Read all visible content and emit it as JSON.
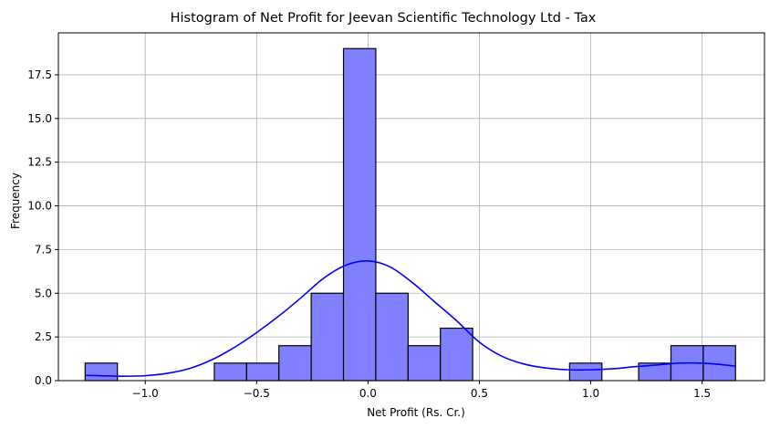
{
  "chart_data": {
    "type": "bar",
    "title": "Histogram of Net Profit for Jeevan Scientific Technology Ltd - Tax",
    "xlabel": "Net Profit (Rs. Cr.)",
    "ylabel": "Frequency",
    "xlim": [
      -1.39,
      1.78
    ],
    "ylim": [
      0,
      19.9
    ],
    "xticks": [
      -1.0,
      -0.5,
      0.0,
      0.5,
      1.0,
      1.5
    ],
    "xtick_labels": [
      "−1.0",
      "−0.5",
      "0.0",
      "0.5",
      "1.0",
      "1.5"
    ],
    "yticks": [
      0,
      2.5,
      5.0,
      7.5,
      10.0,
      12.5,
      15.0,
      17.5
    ],
    "ytick_labels": [
      "0.0",
      "2.5",
      "5.0",
      "7.5",
      "10.0",
      "12.5",
      "15.0",
      "17.5"
    ],
    "grid": true,
    "bar_fill": "#8080ff",
    "bar_edge": "#000000",
    "kde_color": "#0000ff",
    "bins": [
      {
        "x0": -1.27,
        "x1": -1.125,
        "count": 1
      },
      {
        "x0": -1.125,
        "x1": -0.98,
        "count": 0
      },
      {
        "x0": -0.98,
        "x1": -0.835,
        "count": 0
      },
      {
        "x0": -0.835,
        "x1": -0.69,
        "count": 0
      },
      {
        "x0": -0.69,
        "x1": -0.545,
        "count": 1
      },
      {
        "x0": -0.545,
        "x1": -0.4,
        "count": 1
      },
      {
        "x0": -0.4,
        "x1": -0.255,
        "count": 2
      },
      {
        "x0": -0.255,
        "x1": -0.11,
        "count": 5
      },
      {
        "x0": -0.11,
        "x1": 0.035,
        "count": 19
      },
      {
        "x0": 0.035,
        "x1": 0.18,
        "count": 5
      },
      {
        "x0": 0.18,
        "x1": 0.325,
        "count": 2
      },
      {
        "x0": 0.325,
        "x1": 0.47,
        "count": 3
      },
      {
        "x0": 0.47,
        "x1": 0.615,
        "count": 0
      },
      {
        "x0": 0.615,
        "x1": 0.76,
        "count": 0
      },
      {
        "x0": 0.76,
        "x1": 0.905,
        "count": 0
      },
      {
        "x0": 0.905,
        "x1": 1.05,
        "count": 1
      },
      {
        "x0": 1.05,
        "x1": 1.215,
        "count": 0
      },
      {
        "x0": 1.215,
        "x1": 1.36,
        "count": 1
      },
      {
        "x0": 1.36,
        "x1": 1.505,
        "count": 2
      },
      {
        "x0": 1.505,
        "x1": 1.65,
        "count": 2
      }
    ],
    "kde": {
      "x": [
        -1.27,
        -1.2,
        -1.1,
        -1.0,
        -0.9,
        -0.8,
        -0.7,
        -0.6,
        -0.5,
        -0.4,
        -0.3,
        -0.2,
        -0.1,
        0.0,
        0.1,
        0.2,
        0.3,
        0.4,
        0.5,
        0.6,
        0.7,
        0.8,
        0.9,
        1.0,
        1.1,
        1.2,
        1.3,
        1.4,
        1.5,
        1.6,
        1.65
      ],
      "y": [
        0.3,
        0.28,
        0.25,
        0.28,
        0.42,
        0.7,
        1.2,
        1.9,
        2.75,
        3.7,
        4.75,
        5.85,
        6.6,
        6.85,
        6.5,
        5.6,
        4.5,
        3.4,
        2.2,
        1.4,
        0.95,
        0.72,
        0.62,
        0.62,
        0.68,
        0.8,
        0.9,
        1.0,
        1.0,
        0.9,
        0.82
      ]
    }
  }
}
